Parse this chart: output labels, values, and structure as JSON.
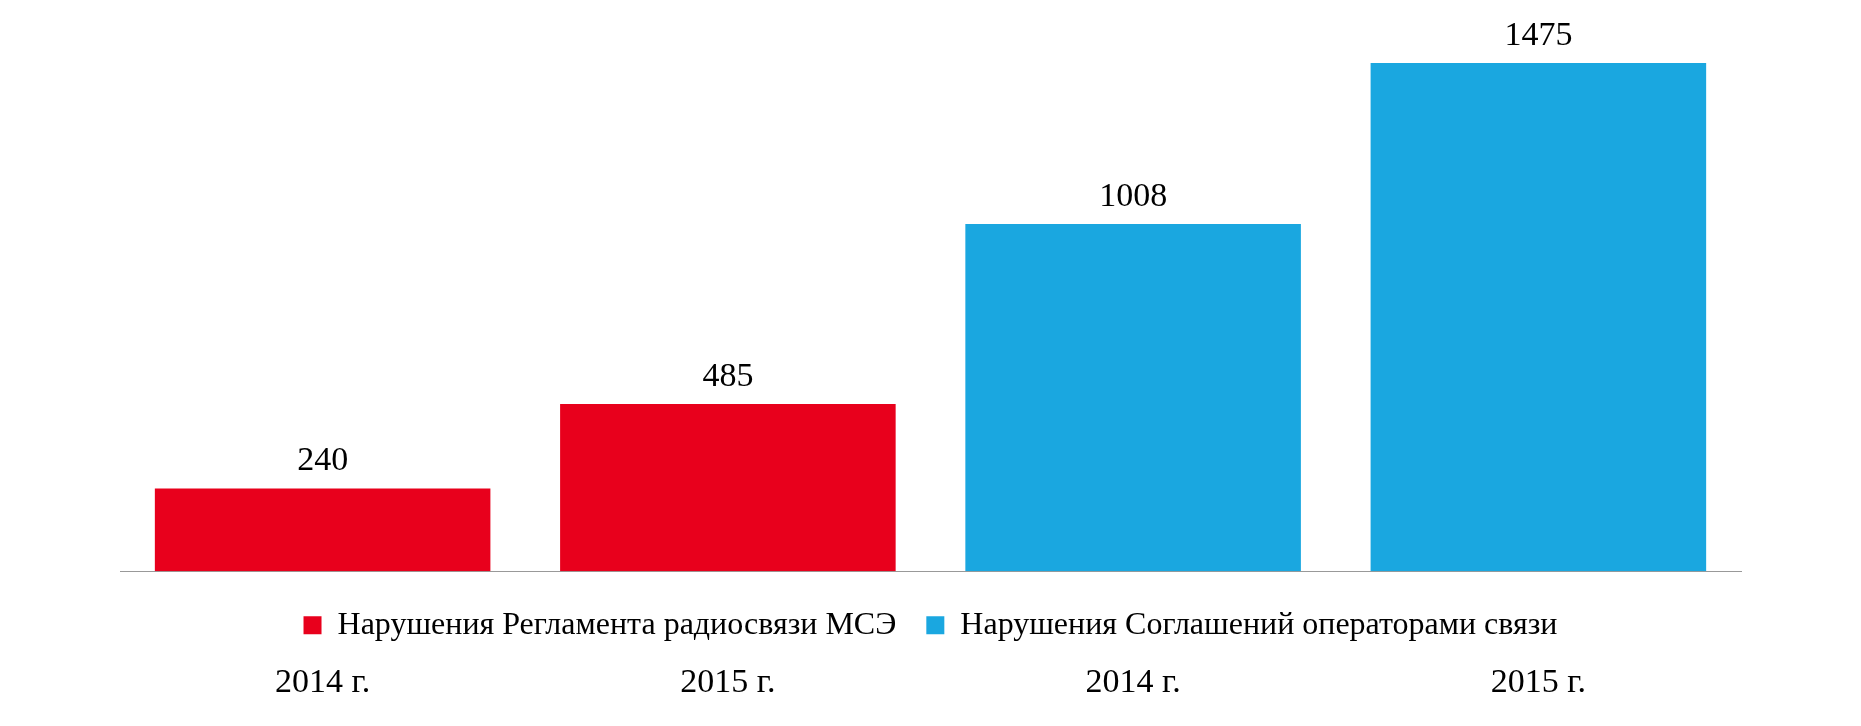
{
  "chart_data": {
    "type": "bar",
    "categories": [
      "2014 г.",
      "2015 г.",
      "2014 г.",
      "2015 г."
    ],
    "data_labels": true,
    "legend": "bottom",
    "grid": false,
    "tick_labels": "x",
    "series": [
      {
        "name": "Нарушения Регламента радиосвязи МСЭ",
        "color": "#e8001c",
        "values": [
          240,
          485,
          null,
          null
        ]
      },
      {
        "name": "Нарушения Соглашений операторами связи",
        "color": "#1aa7e0",
        "values": [
          null,
          null,
          1008,
          1475
        ]
      }
    ]
  }
}
